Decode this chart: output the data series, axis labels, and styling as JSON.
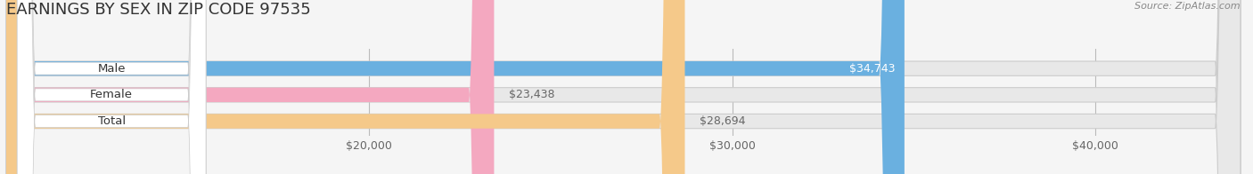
{
  "title": "EARNINGS BY SEX IN ZIP CODE 97535",
  "source": "Source: ZipAtlas.com",
  "categories": [
    "Male",
    "Female",
    "Total"
  ],
  "values": [
    34743,
    23438,
    28694
  ],
  "bar_colors": [
    "#6ab0e0",
    "#f4a8c0",
    "#f5c98a"
  ],
  "value_labels": [
    "$34,743",
    "$23,438",
    "$28,694"
  ],
  "x_ticks": [
    20000,
    30000,
    40000
  ],
  "x_tick_labels": [
    "$20,000",
    "$30,000",
    "$40,000"
  ],
  "xlim": [
    10000,
    44000
  ],
  "bar_height": 0.55,
  "background_color": "#f5f5f5",
  "bar_bg_color": "#e8e8e8",
  "title_fontsize": 13,
  "label_fontsize": 9.5,
  "tick_fontsize": 9,
  "source_fontsize": 8
}
